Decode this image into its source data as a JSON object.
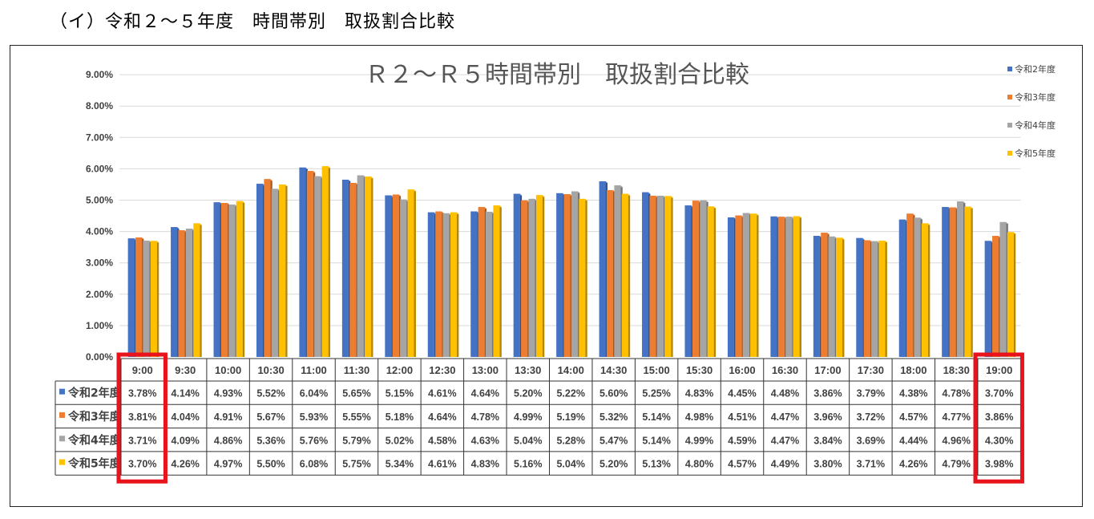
{
  "page": {
    "heading": "（イ）令和２～５年度　時間帯別　取扱割合比較"
  },
  "colors": {
    "series": [
      "#4472C4",
      "#ED7D31",
      "#A5A5A5",
      "#FFC000"
    ],
    "highlight": "#E8131B"
  },
  "chart_data": {
    "type": "bar",
    "title": "Ｒ２～Ｒ５時間帯別　取扱割合比較",
    "ylim": [
      0,
      9
    ],
    "y_ticks": [
      "0.00%",
      "1.00%",
      "2.00%",
      "3.00%",
      "4.00%",
      "5.00%",
      "6.00%",
      "7.00%",
      "8.00%",
      "9.00%"
    ],
    "grid": true,
    "legend_position": "top-right",
    "categories": [
      "9:00",
      "9:30",
      "10:00",
      "10:30",
      "11:00",
      "11:30",
      "12:00",
      "12:30",
      "13:00",
      "13:30",
      "14:00",
      "14:30",
      "15:00",
      "15:30",
      "16:00",
      "16:30",
      "17:00",
      "17:30",
      "18:00",
      "18:30",
      "19:00"
    ],
    "series": [
      {
        "name": "令和2年度",
        "values": [
          3.78,
          4.14,
          4.93,
          5.52,
          6.04,
          5.65,
          5.15,
          4.61,
          4.64,
          5.2,
          5.22,
          5.6,
          5.25,
          4.83,
          4.45,
          4.48,
          3.86,
          3.79,
          4.38,
          4.78,
          3.7
        ],
        "labels": [
          "3.78%",
          "4.14%",
          "4.93%",
          "5.52%",
          "6.04%",
          "5.65%",
          "5.15%",
          "4.61%",
          "4.64%",
          "5.20%",
          "5.22%",
          "5.60%",
          "5.25%",
          "4.83%",
          "4.45%",
          "4.48%",
          "3.86%",
          "3.79%",
          "4.38%",
          "4.78%",
          "3.70%"
        ]
      },
      {
        "name": "令和3年度",
        "values": [
          3.81,
          4.04,
          4.91,
          5.67,
          5.93,
          5.55,
          5.18,
          4.64,
          4.78,
          4.99,
          5.19,
          5.32,
          5.14,
          4.98,
          4.51,
          4.47,
          3.96,
          3.72,
          4.57,
          4.77,
          3.86
        ],
        "labels": [
          "3.81%",
          "4.04%",
          "4.91%",
          "5.67%",
          "5.93%",
          "5.55%",
          "5.18%",
          "4.64%",
          "4.78%",
          "4.99%",
          "5.19%",
          "5.32%",
          "5.14%",
          "4.98%",
          "4.51%",
          "4.47%",
          "3.96%",
          "3.72%",
          "4.57%",
          "4.77%",
          "3.86%"
        ]
      },
      {
        "name": "令和4年度",
        "values": [
          3.71,
          4.09,
          4.86,
          5.36,
          5.76,
          5.79,
          5.02,
          4.58,
          4.63,
          5.04,
          5.28,
          5.47,
          5.14,
          4.99,
          4.59,
          4.47,
          3.84,
          3.69,
          4.44,
          4.96,
          4.3
        ],
        "labels": [
          "3.71%",
          "4.09%",
          "4.86%",
          "5.36%",
          "5.76%",
          "5.79%",
          "5.02%",
          "4.58%",
          "4.63%",
          "5.04%",
          "5.28%",
          "5.47%",
          "5.14%",
          "4.99%",
          "4.59%",
          "4.47%",
          "3.84%",
          "3.69%",
          "4.44%",
          "4.96%",
          "4.30%"
        ]
      },
      {
        "name": "令和5年度",
        "values": [
          3.7,
          4.26,
          4.97,
          5.5,
          6.08,
          5.75,
          5.34,
          4.61,
          4.83,
          5.16,
          5.04,
          5.2,
          5.13,
          4.8,
          4.57,
          4.49,
          3.8,
          3.71,
          4.26,
          4.79,
          3.98
        ],
        "labels": [
          "3.70%",
          "4.26%",
          "4.97%",
          "5.50%",
          "6.08%",
          "5.75%",
          "5.34%",
          "4.61%",
          "4.83%",
          "5.16%",
          "5.04%",
          "5.20%",
          "5.13%",
          "4.80%",
          "4.57%",
          "4.49%",
          "3.80%",
          "3.71%",
          "4.26%",
          "4.79%",
          "3.98%"
        ]
      }
    ],
    "highlighted_categories": [
      "9:00",
      "19:00"
    ]
  }
}
